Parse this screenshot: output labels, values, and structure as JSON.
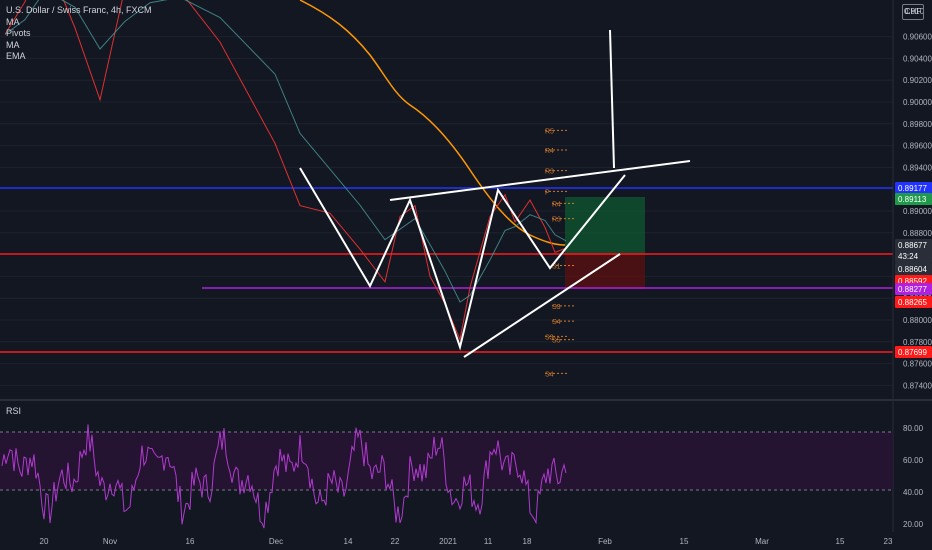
{
  "legend": {
    "title": "U.S. Dollar / Swiss Franc, 4h, FXCM",
    "indicators": [
      "MA",
      "Pivots",
      "MA",
      "EMA"
    ]
  },
  "currency_badge": "CHF",
  "rsi_label": "RSI",
  "colors": {
    "background": "#131722",
    "price_line": "#e03030",
    "ma_orange": "#ff9800",
    "rsi": "#b03ad0",
    "pivot": "#d07a2a",
    "blue_level": "#2233ff",
    "red_level": "#ff1a1a",
    "purple_level": "#b020e0",
    "long_position_green": "#0d5c30",
    "long_position_red": "#5e1010"
  },
  "chart_data": [
    {
      "type": "line",
      "title": "U.S. Dollar / Swiss Franc, 4h, FXCM",
      "x_ticks": [
        "20",
        "Nov",
        "16",
        "Dec",
        "14",
        "22",
        "2021",
        "11",
        "18",
        "Feb",
        "15",
        "Mar",
        "15",
        "23"
      ],
      "y_ticks": [
        0.906,
        0.904,
        0.902,
        0.9,
        0.898,
        0.896,
        0.894,
        0.89,
        0.888,
        0.884,
        0.882,
        0.88,
        0.878,
        0.876,
        0.874
      ],
      "y_top_label": "0.910",
      "ylim": [
        0.8726,
        0.9106
      ],
      "price_close": [
        [
          "20",
          0.9062
        ],
        [
          "27",
          0.9092
        ],
        [
          "Nov",
          0.9135
        ],
        [
          "4",
          0.9068
        ],
        [
          "9",
          0.9002
        ],
        [
          "12",
          0.9105
        ],
        [
          "16",
          0.9112
        ],
        [
          "23",
          0.9102
        ],
        [
          "27",
          0.9055
        ],
        [
          "Dec",
          0.8962
        ],
        [
          "4",
          0.8905
        ],
        [
          "9",
          0.8898
        ],
        [
          "14",
          0.8865
        ],
        [
          "17",
          0.8835
        ],
        [
          "22",
          0.8895
        ],
        [
          "24",
          0.8905
        ],
        [
          "29",
          0.884
        ],
        [
          "2021",
          0.8815
        ],
        [
          "6",
          0.8782
        ],
        [
          "8",
          0.883
        ],
        [
          "11",
          0.8895
        ],
        [
          "14",
          0.8915
        ],
        [
          "15",
          0.889
        ],
        [
          "18",
          0.891
        ],
        [
          "20",
          0.8885
        ],
        [
          "21",
          0.8862
        ],
        [
          "22",
          0.8866
        ]
      ],
      "current_price_label": "0.88677",
      "countdown": "43:24",
      "price_labels": [
        {
          "value": "0.89177",
          "color": "#2233ff"
        },
        {
          "value": "0.89113",
          "color": "#1e9a4a"
        },
        {
          "value": "0.88604",
          "color": "#2a2e39"
        },
        {
          "value": "0.88592",
          "color": "#ff1a1a"
        },
        {
          "value": "0.88277",
          "color": "#b020e0"
        },
        {
          "value": "0.88265",
          "color": "#ff1a1a"
        },
        {
          "value": "0.87699",
          "color": "#ff1a1a"
        }
      ],
      "pivots_1": [
        {
          "label": "R5",
          "value": 0.8974
        },
        {
          "label": "R4",
          "value": 0.8956
        },
        {
          "label": "R3",
          "value": 0.8937
        },
        {
          "label": "P",
          "value": 0.8918
        }
      ],
      "pivots_2": [
        {
          "label": "R4",
          "value": 0.8907
        },
        {
          "label": "R3",
          "value": 0.8893
        },
        {
          "label": "S1",
          "value": 0.885
        },
        {
          "label": "S3",
          "value": 0.8813
        },
        {
          "label": "S4",
          "value": 0.8799
        },
        {
          "label": "S5",
          "value": 0.8782
        }
      ],
      "pivots_3": [
        {
          "label": "S3",
          "value": 0.8785
        },
        {
          "label": "S4",
          "value": 0.8751
        }
      ]
    },
    {
      "type": "line",
      "title": "RSI",
      "y_ticks": [
        "80.00",
        "60.00",
        "40.00",
        "20.00"
      ],
      "ylim": [
        10,
        90
      ],
      "bands": [
        70,
        30
      ]
    }
  ]
}
